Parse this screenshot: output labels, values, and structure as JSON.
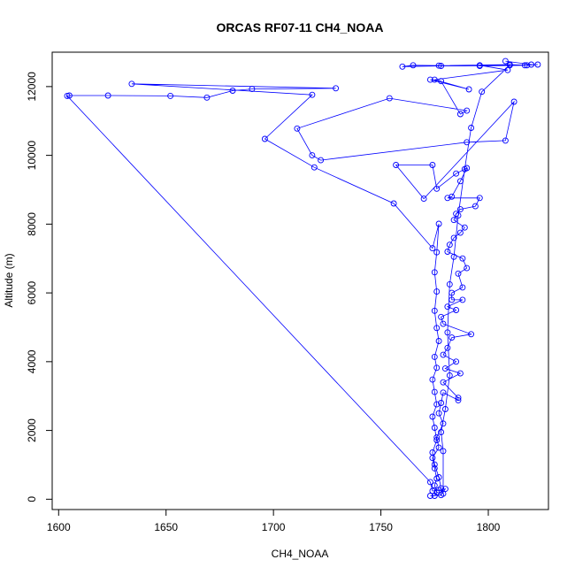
{
  "chart_data": {
    "type": "line",
    "title": "ORCAS RF07-11 CH4_NOAA",
    "xlabel": "CH4_NOAA",
    "ylabel": "Altitude (m)",
    "xlim": [
      1597,
      1828
    ],
    "ylim": [
      -300,
      13000
    ],
    "xticks": [
      1600,
      1650,
      1700,
      1750,
      1800
    ],
    "yticks": [
      0,
      2000,
      4000,
      6000,
      8000,
      10000,
      12000
    ],
    "grid": false,
    "legend": "none",
    "marker": "open-circle",
    "color": "#0000ff",
    "series": [
      {
        "points": [
          [
            1808,
            12740
          ],
          [
            1820,
            12640
          ],
          [
            1823,
            12640
          ],
          [
            1817,
            12620
          ],
          [
            1796,
            12600
          ],
          [
            1778,
            12600
          ],
          [
            1760,
            12580
          ],
          [
            1765,
            12620
          ],
          [
            1777,
            12610
          ],
          [
            1810,
            12640
          ],
          [
            1818,
            12620
          ],
          [
            1796,
            12620
          ],
          [
            1809,
            12480
          ],
          [
            1775,
            12200
          ],
          [
            1791,
            11920
          ],
          [
            1773,
            12200
          ],
          [
            1778,
            12160
          ],
          [
            1787,
            11200
          ],
          [
            1790,
            11300
          ],
          [
            1754,
            11660
          ],
          [
            1711,
            10780
          ],
          [
            1718,
            10000
          ],
          [
            1722,
            9860
          ],
          [
            1790,
            10380
          ],
          [
            1808,
            10430
          ],
          [
            1812,
            11560
          ],
          [
            1770,
            8740
          ],
          [
            1757,
            9720
          ],
          [
            1774,
            9720
          ],
          [
            1776,
            9030
          ],
          [
            1785,
            9470
          ],
          [
            1790,
            9630
          ],
          [
            1787,
            9250
          ],
          [
            1783,
            8800
          ],
          [
            1781,
            8760
          ],
          [
            1796,
            8760
          ],
          [
            1794,
            8520
          ],
          [
            1787,
            8430
          ],
          [
            1785,
            8300
          ],
          [
            1784,
            8120
          ],
          [
            1789,
            7900
          ],
          [
            1787,
            7750
          ],
          [
            1784,
            7600
          ],
          [
            1782,
            7400
          ],
          [
            1781,
            7200
          ],
          [
            1788,
            7000
          ],
          [
            1790,
            6720
          ],
          [
            1786,
            6560
          ],
          [
            1788,
            6160
          ],
          [
            1783,
            6000
          ],
          [
            1783,
            5800
          ],
          [
            1788,
            5800
          ],
          [
            1781,
            5600
          ],
          [
            1785,
            5500
          ],
          [
            1778,
            5300
          ],
          [
            1779,
            5100
          ],
          [
            1792,
            4800
          ],
          [
            1783,
            4700
          ],
          [
            1781,
            4400
          ],
          [
            1779,
            4200
          ],
          [
            1785,
            4000
          ],
          [
            1780,
            3800
          ],
          [
            1787,
            3660
          ],
          [
            1779,
            3400
          ],
          [
            1786,
            2950
          ],
          [
            1786,
            2880
          ],
          [
            1779,
            3100
          ],
          [
            1778,
            2800
          ],
          [
            1777,
            2500
          ],
          [
            1779,
            2200
          ],
          [
            1776,
            1800
          ],
          [
            1777,
            1500
          ],
          [
            1774,
            1200
          ],
          [
            1775,
            900
          ],
          [
            1776,
            600
          ],
          [
            1775,
            400
          ],
          [
            1776,
            200
          ],
          [
            1775,
            100
          ],
          [
            1773,
            100
          ],
          [
            1778,
            120
          ],
          [
            1780,
            300
          ],
          [
            1777,
            260
          ],
          [
            1774,
            240
          ],
          [
            1773,
            500
          ],
          [
            1604,
            11730
          ],
          [
            1605,
            11740
          ],
          [
            1623,
            11740
          ],
          [
            1652,
            11730
          ],
          [
            1669,
            11680
          ],
          [
            1681,
            11880
          ],
          [
            1690,
            11930
          ],
          [
            1729,
            11950
          ],
          [
            1634,
            12080
          ],
          [
            1718,
            11760
          ],
          [
            1696,
            10480
          ],
          [
            1719,
            9650
          ],
          [
            1756,
            8600
          ],
          [
            1774,
            7300
          ],
          [
            1777,
            8010
          ],
          [
            1776,
            7180
          ],
          [
            1775,
            6600
          ],
          [
            1776,
            6040
          ],
          [
            1775,
            5480
          ],
          [
            1776,
            4980
          ],
          [
            1777,
            4600
          ],
          [
            1775,
            4140
          ],
          [
            1776,
            3820
          ],
          [
            1774,
            3480
          ],
          [
            1775,
            3120
          ],
          [
            1776,
            2760
          ],
          [
            1774,
            2400
          ],
          [
            1775,
            2080
          ],
          [
            1776,
            1720
          ],
          [
            1774,
            1360
          ],
          [
            1775,
            1010
          ],
          [
            1777,
            640
          ],
          [
            1778,
            320
          ],
          [
            1779,
            160
          ],
          [
            1779,
            1400
          ],
          [
            1778,
            1950
          ],
          [
            1780,
            2620
          ],
          [
            1782,
            3600
          ],
          [
            1781,
            4850
          ],
          [
            1782,
            6250
          ],
          [
            1784,
            7050
          ],
          [
            1786,
            8250
          ],
          [
            1789,
            9600
          ],
          [
            1792,
            10800
          ],
          [
            1797,
            11850
          ],
          [
            1810,
            12620
          ]
        ]
      }
    ]
  }
}
